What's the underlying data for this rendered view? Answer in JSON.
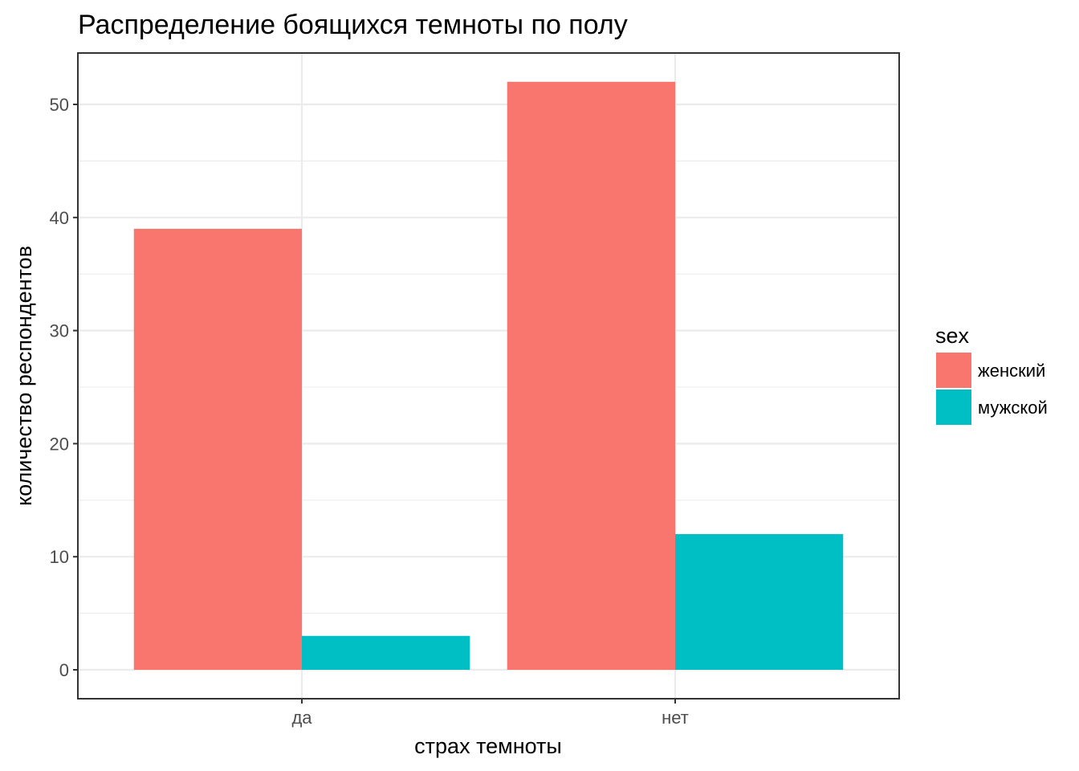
{
  "chart_data": {
    "type": "bar",
    "title": "Распределение боящихся темноты по полу",
    "xlabel": "страх темноты",
    "ylabel": "количество респондентов",
    "categories": [
      "да",
      "нет"
    ],
    "series": [
      {
        "name": "женский",
        "values": [
          39,
          52
        ],
        "color": "#F8766D"
      },
      {
        "name": "мужской",
        "values": [
          3,
          12
        ],
        "color": "#00BFC4"
      }
    ],
    "ylim": [
      0,
      54.6
    ],
    "yticks": [
      "0",
      "10",
      "20",
      "30",
      "40",
      "50"
    ],
    "grid": true,
    "legend": {
      "title": "sex",
      "position": "right"
    }
  }
}
